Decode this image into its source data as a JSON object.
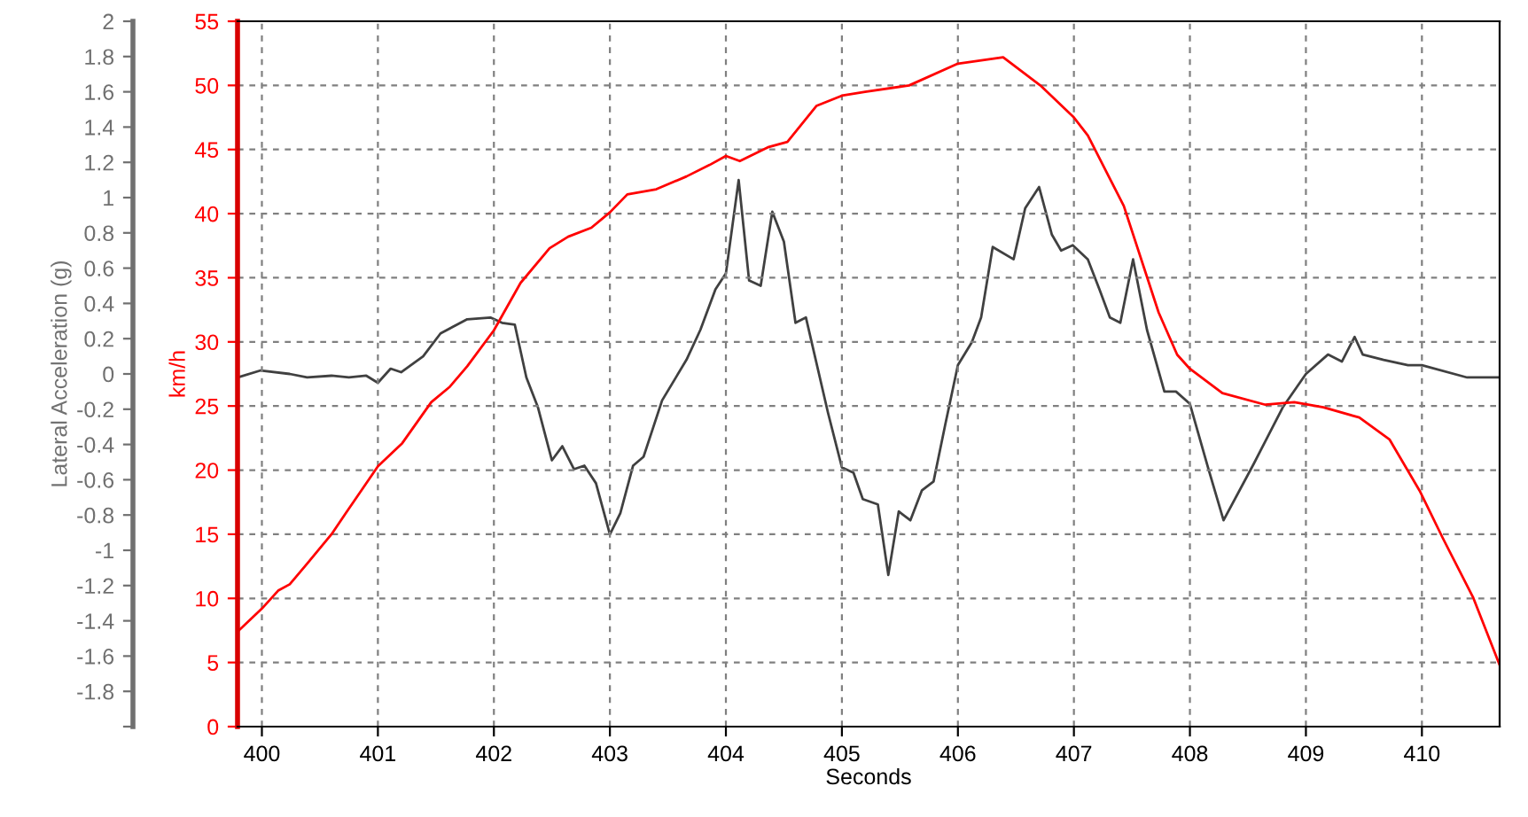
{
  "chart_data": {
    "type": "line",
    "xlabel": "Seconds",
    "ylabel": "km/h",
    "y2label": "Lateral Acceleration (g)",
    "xlim": [
      399.79,
      410.67
    ],
    "xticks": [
      400,
      401,
      402,
      403,
      404,
      405,
      406,
      407,
      408,
      409,
      410
    ],
    "ylim": [
      0,
      55
    ],
    "yticks": [
      0,
      5,
      10,
      15,
      20,
      25,
      30,
      35,
      40,
      45,
      50,
      55
    ],
    "y2lim": [
      -2,
      2
    ],
    "y2ticks": [
      {
        "value": -2,
        "label": null
      },
      -1.8,
      -1.6,
      -1.4,
      -1.2,
      -1,
      -0.8,
      -0.6,
      -0.4,
      -0.2,
      0,
      0.2,
      0.4,
      0.6,
      0.8,
      1,
      1.2,
      1.4,
      1.6,
      1.8,
      2
    ],
    "grid": true,
    "line_style": "solid",
    "marker": "none",
    "series": [
      {
        "color": "#404040",
        "axis": "y2",
        "x": [
          399.79,
          399.99,
          400.24,
          400.39,
          400.6,
          400.75,
          400.9,
          401,
          401.11,
          401.2,
          401.39,
          401.54,
          401.77,
          401.97,
          402.07,
          402.18,
          402.28,
          402.38,
          402.5,
          402.59,
          402.69,
          402.78,
          402.88,
          403,
          403.09,
          403.2,
          403.29,
          403.45,
          403.66,
          403.78,
          403.91,
          404,
          404.11,
          404.2,
          404.3,
          404.4,
          404.5,
          404.6,
          404.69,
          404.88,
          405,
          405.1,
          405.18,
          405.31,
          405.4,
          405.49,
          405.59,
          405.69,
          405.79,
          405.89,
          406,
          406.12,
          406.2,
          406.3,
          406.48,
          406.58,
          406.7,
          406.81,
          406.89,
          406.99,
          407.12,
          407.22,
          407.31,
          407.4,
          407.51,
          407.63,
          407.78,
          407.88,
          408,
          408.16,
          408.29,
          408.55,
          408.8,
          409,
          409.19,
          409.31,
          409.42,
          409.49,
          409.67,
          409.88,
          410,
          410.39,
          410.67
        ],
        "values": [
          -0.02,
          0.02,
          0,
          -0.02,
          -0.01,
          -0.02,
          -0.01,
          -0.05,
          0.03,
          0.01,
          0.1,
          0.23,
          0.31,
          0.32,
          0.29,
          0.28,
          -0.02,
          -0.19,
          -0.49,
          -0.41,
          -0.54,
          -0.52,
          -0.62,
          -0.91,
          -0.79,
          -0.52,
          -0.47,
          -0.15,
          0.08,
          0.25,
          0.48,
          0.57,
          1.1,
          0.53,
          0.5,
          0.92,
          0.75,
          0.29,
          0.32,
          -0.22,
          -0.53,
          -0.56,
          -0.71,
          -0.74,
          -1.14,
          -0.78,
          -0.83,
          -0.66,
          -0.61,
          -0.29,
          0.05,
          0.18,
          0.32,
          0.72,
          0.65,
          0.94,
          1.06,
          0.79,
          0.7,
          0.73,
          0.65,
          0.48,
          0.32,
          0.29,
          0.65,
          0.25,
          -0.1,
          -0.1,
          -0.17,
          -0.54,
          -0.83,
          -0.51,
          -0.19,
          0,
          0.11,
          0.07,
          0.21,
          0.11,
          0.08,
          0.05,
          0.05,
          -0.02,
          -0.02
        ]
      },
      {
        "color": "#ff0000",
        "axis": "y",
        "x": [
          399.79,
          400,
          400.14,
          400.24,
          400.39,
          400.6,
          400.72,
          401,
          401.21,
          401.46,
          401.62,
          401.77,
          402,
          402.23,
          402.48,
          402.64,
          402.84,
          403,
          403.15,
          403.4,
          403.66,
          403.86,
          404,
          404.12,
          404.37,
          404.53,
          404.78,
          405,
          405.2,
          405.58,
          406,
          406.39,
          406.71,
          407,
          407.12,
          407.43,
          407.73,
          407.89,
          408,
          408.28,
          408.65,
          408.9,
          409.15,
          409.46,
          409.72,
          409.98,
          410.18,
          410.44,
          410.67
        ],
        "values": [
          7.4,
          9.2,
          10.6,
          11.1,
          12.7,
          15,
          16.6,
          20.3,
          22.1,
          25.3,
          26.5,
          28.1,
          30.9,
          34.6,
          37.3,
          38.2,
          38.9,
          40.1,
          41.5,
          41.9,
          42.9,
          43.8,
          44.5,
          44.1,
          45.2,
          45.6,
          48.4,
          49.2,
          49.5,
          50,
          51.7,
          52.2,
          50,
          47.5,
          46.1,
          40.6,
          32.3,
          29,
          27.9,
          26,
          25.1,
          25.3,
          24.9,
          24.1,
          22.4,
          18.4,
          14.7,
          10.1,
          4.8
        ]
      }
    ]
  }
}
